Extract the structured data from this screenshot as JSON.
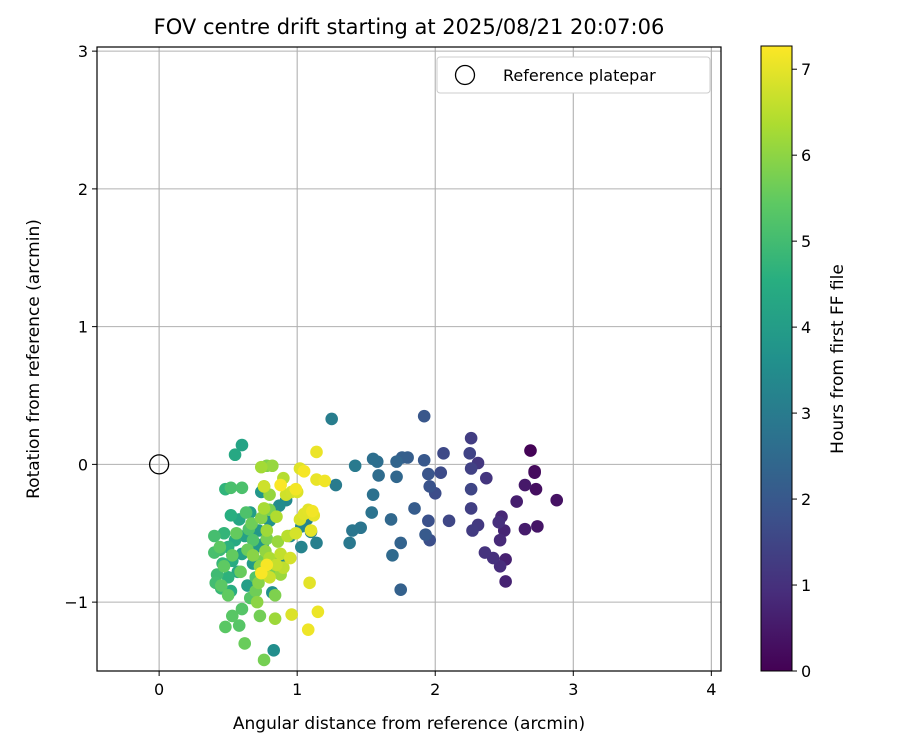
{
  "chart_data": {
    "type": "scatter",
    "title": "FOV centre drift starting at 2025/08/21 20:07:06",
    "xlabel": "Angular distance from reference (arcmin)",
    "ylabel": "Rotation from reference (arcmin)",
    "xlim": [
      -0.45,
      4.07
    ],
    "ylim": [
      -1.5,
      3.03
    ],
    "xticks": [
      0,
      1,
      2,
      3,
      4
    ],
    "yticks": [
      -1,
      0,
      1,
      2,
      3
    ],
    "xtick_labels": [
      "0",
      "1",
      "2",
      "3",
      "4"
    ],
    "ytick_labels": [
      "−1",
      "0",
      "1",
      "2",
      "3"
    ],
    "grid": true,
    "legend": {
      "label": "Reference platepar",
      "placement": "top-right"
    },
    "reference_point": {
      "x": 0,
      "y": 0
    },
    "colorbar": {
      "label": "Hours from first FF file",
      "colormap": "viridis",
      "range": [
        0,
        7.27
      ],
      "ticks": [
        0,
        1,
        2,
        3,
        4,
        5,
        6,
        7
      ],
      "tick_labels": [
        "0",
        "1",
        "2",
        "3",
        "4",
        "5",
        "6",
        "7"
      ]
    },
    "points": [
      {
        "x": 2.69,
        "y": 0.1,
        "h": 0.05
      },
      {
        "x": 2.72,
        "y": -0.05,
        "h": 0.12
      },
      {
        "x": 2.72,
        "y": -0.06,
        "h": 0.2
      },
      {
        "x": 2.73,
        "y": -0.18,
        "h": 0.28
      },
      {
        "x": 2.88,
        "y": -0.26,
        "h": 0.35
      },
      {
        "x": 2.74,
        "y": -0.45,
        "h": 0.42
      },
      {
        "x": 2.65,
        "y": -0.15,
        "h": 0.5
      },
      {
        "x": 2.65,
        "y": -0.47,
        "h": 0.55
      },
      {
        "x": 2.59,
        "y": -0.27,
        "h": 0.6
      },
      {
        "x": 2.51,
        "y": -0.69,
        "h": 0.65
      },
      {
        "x": 2.51,
        "y": -0.85,
        "h": 0.7
      },
      {
        "x": 2.5,
        "y": -0.48,
        "h": 0.75
      },
      {
        "x": 2.48,
        "y": -0.38,
        "h": 0.8
      },
      {
        "x": 2.47,
        "y": -0.55,
        "h": 0.85
      },
      {
        "x": 2.47,
        "y": -0.74,
        "h": 0.9
      },
      {
        "x": 2.46,
        "y": -0.42,
        "h": 0.95
      },
      {
        "x": 2.42,
        "y": -0.68,
        "h": 1.0
      },
      {
        "x": 2.36,
        "y": -0.64,
        "h": 1.05
      },
      {
        "x": 2.37,
        "y": -0.1,
        "h": 1.1
      },
      {
        "x": 2.31,
        "y": 0.01,
        "h": 1.15
      },
      {
        "x": 2.31,
        "y": -0.44,
        "h": 1.2
      },
      {
        "x": 2.27,
        "y": -0.48,
        "h": 1.25
      },
      {
        "x": 2.26,
        "y": 0.19,
        "h": 1.3
      },
      {
        "x": 2.26,
        "y": -0.32,
        "h": 1.35
      },
      {
        "x": 2.26,
        "y": -0.03,
        "h": 1.4
      },
      {
        "x": 2.25,
        "y": 0.08,
        "h": 1.45
      },
      {
        "x": 2.26,
        "y": -0.18,
        "h": 1.5
      },
      {
        "x": 2.1,
        "y": -0.41,
        "h": 1.55
      },
      {
        "x": 2.06,
        "y": 0.08,
        "h": 1.6
      },
      {
        "x": 2.04,
        "y": -0.06,
        "h": 1.65
      },
      {
        "x": 2.0,
        "y": -0.21,
        "h": 1.7
      },
      {
        "x": 1.96,
        "y": -0.55,
        "h": 1.75
      },
      {
        "x": 1.95,
        "y": -0.41,
        "h": 1.8
      },
      {
        "x": 1.96,
        "y": -0.16,
        "h": 1.85
      },
      {
        "x": 1.95,
        "y": -0.07,
        "h": 1.9
      },
      {
        "x": 1.92,
        "y": 0.35,
        "h": 1.95
      },
      {
        "x": 1.92,
        "y": 0.03,
        "h": 2.0
      },
      {
        "x": 1.93,
        "y": -0.51,
        "h": 2.05
      },
      {
        "x": 1.85,
        "y": -0.32,
        "h": 2.1
      },
      {
        "x": 1.8,
        "y": 0.05,
        "h": 2.15
      },
      {
        "x": 1.76,
        "y": 0.05,
        "h": 2.2
      },
      {
        "x": 1.75,
        "y": -0.91,
        "h": 2.25
      },
      {
        "x": 1.75,
        "y": -0.57,
        "h": 2.3
      },
      {
        "x": 1.72,
        "y": 0.02,
        "h": 2.35
      },
      {
        "x": 1.72,
        "y": -0.09,
        "h": 2.4
      },
      {
        "x": 1.68,
        "y": -0.4,
        "h": 2.45
      },
      {
        "x": 1.69,
        "y": -0.66,
        "h": 2.5
      },
      {
        "x": 1.59,
        "y": -0.08,
        "h": 2.55
      },
      {
        "x": 1.58,
        "y": 0.02,
        "h": 2.6
      },
      {
        "x": 1.55,
        "y": 0.04,
        "h": 2.65
      },
      {
        "x": 1.55,
        "y": -0.22,
        "h": 2.7
      },
      {
        "x": 1.54,
        "y": -0.35,
        "h": 2.75
      },
      {
        "x": 1.46,
        "y": -0.46,
        "h": 2.8
      },
      {
        "x": 1.4,
        "y": -0.48,
        "h": 2.85
      },
      {
        "x": 1.38,
        "y": -0.57,
        "h": 2.9
      },
      {
        "x": 1.42,
        "y": -0.01,
        "h": 2.95
      },
      {
        "x": 1.28,
        "y": -0.15,
        "h": 3.0
      },
      {
        "x": 1.25,
        "y": 0.33,
        "h": 3.05
      },
      {
        "x": 1.14,
        "y": -0.57,
        "h": 3.1
      },
      {
        "x": 1.1,
        "y": -0.49,
        "h": 3.15
      },
      {
        "x": 1.07,
        "y": -0.4,
        "h": 3.2
      },
      {
        "x": 1.03,
        "y": -0.6,
        "h": 3.25
      },
      {
        "x": 1.03,
        "y": -0.45,
        "h": 3.3
      },
      {
        "x": 0.95,
        "y": -0.52,
        "h": 3.35
      },
      {
        "x": 0.92,
        "y": -0.26,
        "h": 3.4
      },
      {
        "x": 0.88,
        "y": -0.7,
        "h": 3.45
      },
      {
        "x": 0.87,
        "y": -0.3,
        "h": 3.5
      },
      {
        "x": 0.83,
        "y": -1.35,
        "h": 3.55
      },
      {
        "x": 0.82,
        "y": -0.93,
        "h": 3.6
      },
      {
        "x": 0.8,
        "y": -0.41,
        "h": 3.65
      },
      {
        "x": 0.77,
        "y": -0.78,
        "h": 3.7
      },
      {
        "x": 0.75,
        "y": -0.58,
        "h": 3.75
      },
      {
        "x": 0.74,
        "y": -0.2,
        "h": 3.8
      },
      {
        "x": 0.72,
        "y": -0.48,
        "h": 3.85
      },
      {
        "x": 0.7,
        "y": -0.6,
        "h": 3.9
      },
      {
        "x": 0.68,
        "y": -0.72,
        "h": 3.95
      },
      {
        "x": 0.66,
        "y": -0.35,
        "h": 4.0
      },
      {
        "x": 0.64,
        "y": -0.88,
        "h": 4.05
      },
      {
        "x": 0.62,
        "y": -0.52,
        "h": 4.1
      },
      {
        "x": 0.6,
        "y": -0.65,
        "h": 4.15
      },
      {
        "x": 0.6,
        "y": 0.14,
        "h": 4.2
      },
      {
        "x": 0.58,
        "y": -0.4,
        "h": 4.25
      },
      {
        "x": 0.57,
        "y": -0.78,
        "h": 4.3
      },
      {
        "x": 0.55,
        "y": 0.07,
        "h": 4.35
      },
      {
        "x": 0.55,
        "y": -0.55,
        "h": 4.4
      },
      {
        "x": 0.53,
        "y": -0.7,
        "h": 4.45
      },
      {
        "x": 0.52,
        "y": -0.92,
        "h": 4.5
      },
      {
        "x": 0.52,
        "y": -0.37,
        "h": 4.55
      },
      {
        "x": 0.5,
        "y": -0.6,
        "h": 4.6
      },
      {
        "x": 0.5,
        "y": -0.82,
        "h": 4.65
      },
      {
        "x": 0.48,
        "y": -0.18,
        "h": 4.7
      },
      {
        "x": 0.47,
        "y": -0.5,
        "h": 4.75
      },
      {
        "x": 0.46,
        "y": -0.72,
        "h": 4.8
      },
      {
        "x": 0.45,
        "y": -0.9,
        "h": 4.85
      },
      {
        "x": 0.44,
        "y": -0.62,
        "h": 4.9
      },
      {
        "x": 0.42,
        "y": -0.8,
        "h": 4.95
      },
      {
        "x": 0.41,
        "y": -0.86,
        "h": 5.0
      },
      {
        "x": 0.4,
        "y": -0.52,
        "h": 5.05
      },
      {
        "x": 0.4,
        "y": -0.64,
        "h": 5.1
      },
      {
        "x": 0.52,
        "y": -0.17,
        "h": 5.12
      },
      {
        "x": 0.6,
        "y": -0.17,
        "h": 5.15
      },
      {
        "x": 0.63,
        "y": -0.35,
        "h": 5.18
      },
      {
        "x": 0.65,
        "y": -0.47,
        "h": 5.2
      },
      {
        "x": 0.68,
        "y": -0.55,
        "h": 5.22
      },
      {
        "x": 0.7,
        "y": -0.82,
        "h": 5.25
      },
      {
        "x": 0.66,
        "y": -0.97,
        "h": 5.28
      },
      {
        "x": 0.6,
        "y": -1.05,
        "h": 5.3
      },
      {
        "x": 0.58,
        "y": -1.17,
        "h": 5.32
      },
      {
        "x": 0.53,
        "y": -1.1,
        "h": 5.35
      },
      {
        "x": 0.48,
        "y": -1.18,
        "h": 5.38
      },
      {
        "x": 0.45,
        "y": -0.88,
        "h": 5.4
      },
      {
        "x": 0.44,
        "y": -0.6,
        "h": 5.42
      },
      {
        "x": 0.47,
        "y": -0.74,
        "h": 5.45
      },
      {
        "x": 0.5,
        "y": -0.95,
        "h": 5.48
      },
      {
        "x": 0.53,
        "y": -0.66,
        "h": 5.5
      },
      {
        "x": 0.56,
        "y": -0.5,
        "h": 5.52
      },
      {
        "x": 0.59,
        "y": -0.78,
        "h": 5.55
      },
      {
        "x": 0.62,
        "y": -1.3,
        "h": 5.58
      },
      {
        "x": 0.64,
        "y": -0.62,
        "h": 5.6
      },
      {
        "x": 0.67,
        "y": -0.43,
        "h": 5.62
      },
      {
        "x": 0.7,
        "y": -0.92,
        "h": 5.65
      },
      {
        "x": 0.73,
        "y": -1.1,
        "h": 5.68
      },
      {
        "x": 0.75,
        "y": -0.7,
        "h": 5.7
      },
      {
        "x": 0.76,
        "y": -1.42,
        "h": 5.72
      },
      {
        "x": 0.78,
        "y": -0.54,
        "h": 5.75
      },
      {
        "x": 0.8,
        "y": -0.33,
        "h": 5.78
      },
      {
        "x": 0.82,
        "y": -0.77,
        "h": 5.8
      },
      {
        "x": 0.84,
        "y": -0.95,
        "h": 5.82
      },
      {
        "x": 0.78,
        "y": -0.01,
        "h": 5.85
      },
      {
        "x": 0.76,
        "y": -0.16,
        "h": 5.88
      },
      {
        "x": 0.74,
        "y": -0.39,
        "h": 5.9
      },
      {
        "x": 0.72,
        "y": -0.86,
        "h": 5.92
      },
      {
        "x": 0.68,
        "y": -0.66,
        "h": 5.95
      },
      {
        "x": 0.71,
        "y": -1.0,
        "h": 5.98
      },
      {
        "x": 0.73,
        "y": -0.74,
        "h": 6.0
      },
      {
        "x": 0.77,
        "y": -0.63,
        "h": 6.05
      },
      {
        "x": 0.8,
        "y": -0.22,
        "h": 6.08
      },
      {
        "x": 0.82,
        "y": -0.01,
        "h": 6.1
      },
      {
        "x": 0.86,
        "y": -0.56,
        "h": 6.12
      },
      {
        "x": 0.88,
        "y": -0.8,
        "h": 6.15
      },
      {
        "x": 0.84,
        "y": -1.12,
        "h": 6.18
      },
      {
        "x": 0.78,
        "y": -0.48,
        "h": 6.2
      },
      {
        "x": 0.74,
        "y": -0.02,
        "h": 6.25
      },
      {
        "x": 0.76,
        "y": -0.32,
        "h": 6.3
      },
      {
        "x": 0.8,
        "y": -0.68,
        "h": 6.35
      },
      {
        "x": 0.85,
        "y": -0.38,
        "h": 6.4
      },
      {
        "x": 0.9,
        "y": -0.1,
        "h": 6.45
      },
      {
        "x": 0.93,
        "y": -0.52,
        "h": 6.5
      },
      {
        "x": 0.9,
        "y": -0.75,
        "h": 6.55
      },
      {
        "x": 0.88,
        "y": -0.65,
        "h": 6.6
      },
      {
        "x": 0.85,
        "y": -0.73,
        "h": 6.65
      },
      {
        "x": 0.8,
        "y": -0.82,
        "h": 6.7
      },
      {
        "x": 0.76,
        "y": -0.16,
        "h": 6.72
      },
      {
        "x": 0.92,
        "y": -0.22,
        "h": 6.75
      },
      {
        "x": 0.96,
        "y": -0.2,
        "h": 6.78
      },
      {
        "x": 0.95,
        "y": -0.68,
        "h": 6.8
      },
      {
        "x": 0.99,
        "y": -0.5,
        "h": 6.82
      },
      {
        "x": 1.02,
        "y": -0.4,
        "h": 6.85
      },
      {
        "x": 0.96,
        "y": -1.09,
        "h": 6.88
      },
      {
        "x": 1.0,
        "y": -0.2,
        "h": 6.9
      },
      {
        "x": 1.02,
        "y": -0.03,
        "h": 6.92
      },
      {
        "x": 1.05,
        "y": -0.36,
        "h": 6.94
      },
      {
        "x": 1.08,
        "y": -0.33,
        "h": 6.96
      },
      {
        "x": 1.09,
        "y": -0.86,
        "h": 6.98
      },
      {
        "x": 1.1,
        "y": -0.48,
        "h": 7.0
      },
      {
        "x": 1.12,
        "y": -0.37,
        "h": 7.02
      },
      {
        "x": 1.14,
        "y": -0.11,
        "h": 7.04
      },
      {
        "x": 1.14,
        "y": 0.09,
        "h": 7.06
      },
      {
        "x": 1.15,
        "y": -1.07,
        "h": 7.08
      },
      {
        "x": 1.08,
        "y": -1.2,
        "h": 7.1
      },
      {
        "x": 1.2,
        "y": -0.12,
        "h": 7.12
      },
      {
        "x": 1.11,
        "y": -0.34,
        "h": 7.14
      },
      {
        "x": 0.99,
        "y": -0.18,
        "h": 7.16
      },
      {
        "x": 1.05,
        "y": -0.05,
        "h": 7.18
      },
      {
        "x": 0.78,
        "y": -0.73,
        "h": 7.2
      },
      {
        "x": 0.74,
        "y": -0.79,
        "h": 7.22
      },
      {
        "x": 0.88,
        "y": -0.15,
        "h": 7.24
      }
    ]
  }
}
